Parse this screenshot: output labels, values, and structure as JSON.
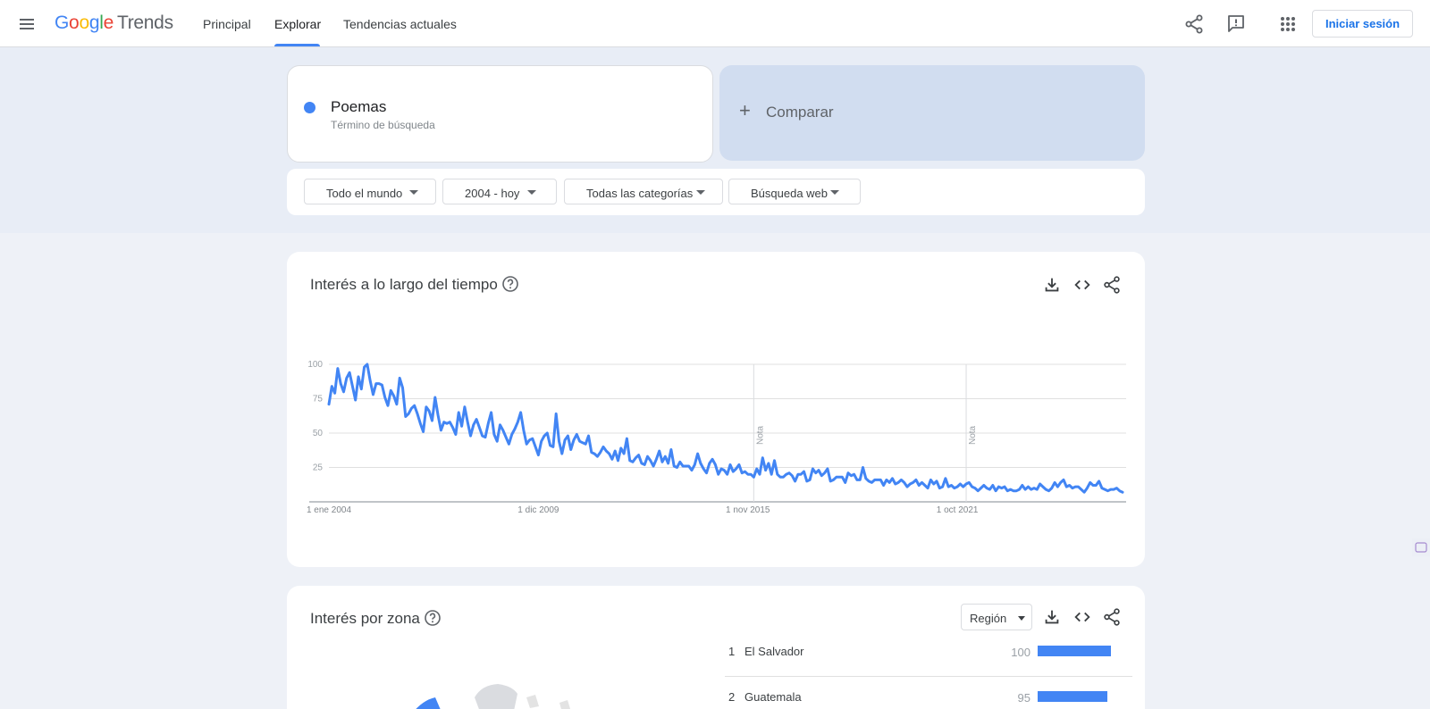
{
  "header": {
    "logo_letters": [
      "G",
      "o",
      "o",
      "g",
      "l",
      "e"
    ],
    "logo_product": "Trends",
    "tabs": [
      {
        "label": "Principal",
        "active": false
      },
      {
        "label": "Explorar",
        "active": true
      },
      {
        "label": "Tendencias actuales",
        "active": false
      }
    ],
    "icons": [
      "menu-icon",
      "share-icon",
      "feedback-icon",
      "apps-icon"
    ],
    "login_label": "Iniciar sesión"
  },
  "search": {
    "term": "Poemas",
    "term_type": "Término de búsqueda",
    "term_color": "#4285f4",
    "compare_label": "Comparar"
  },
  "filters": [
    {
      "label": "Todo el mundo"
    },
    {
      "label": "2004 - hoy"
    },
    {
      "label": "Todas las categorías"
    },
    {
      "label": "Búsqueda web"
    }
  ],
  "interest_over_time": {
    "title": "Interés a lo largo del tiempo",
    "icons": [
      "help-icon",
      "download-icon",
      "embed-icon",
      "share-icon"
    ]
  },
  "chart_data": {
    "type": "line",
    "xlabel": "",
    "ylabel": "",
    "ylim": [
      0,
      100
    ],
    "yticks": [
      25,
      50,
      75,
      100
    ],
    "xtick_labels": [
      "1 ene 2004",
      "1 dic 2009",
      "1 nov 2015",
      "1 oct 2021"
    ],
    "notes": [
      {
        "label": "Nota",
        "date": "2016-01"
      },
      {
        "label": "Nota",
        "date": "2022-01"
      }
    ],
    "grid": true,
    "series": [
      {
        "name": "Poemas",
        "color": "#4285f4",
        "x_start": "2004-01",
        "x_step": "1 month",
        "values": [
          71,
          84,
          79,
          97,
          86,
          80,
          90,
          94,
          84,
          74,
          91,
          82,
          98,
          100,
          88,
          78,
          86,
          86,
          85,
          76,
          70,
          81,
          77,
          71,
          90,
          83,
          62,
          64,
          68,
          70,
          64,
          57,
          51,
          69,
          66,
          59,
          76,
          63,
          52,
          58,
          57,
          58,
          54,
          49,
          65,
          55,
          69,
          58,
          48,
          56,
          60,
          54,
          48,
          47,
          57,
          65,
          49,
          44,
          56,
          52,
          47,
          42,
          49,
          53,
          58,
          65,
          52,
          42,
          45,
          46,
          40,
          34,
          44,
          48,
          50,
          41,
          40,
          64,
          44,
          35,
          45,
          48,
          38,
          45,
          49,
          44,
          43,
          42,
          48,
          36,
          35,
          33,
          36,
          40,
          37,
          35,
          31,
          37,
          30,
          39,
          35,
          46,
          30,
          29,
          32,
          34,
          28,
          27,
          33,
          30,
          26,
          31,
          37,
          29,
          33,
          28,
          38,
          26,
          25,
          29,
          26,
          26,
          26,
          23,
          27,
          35,
          28,
          24,
          21,
          28,
          31,
          27,
          20,
          24,
          23,
          20,
          27,
          22,
          24,
          27,
          21,
          22,
          20,
          20,
          18,
          24,
          20,
          32,
          23,
          28,
          20,
          30,
          20,
          18,
          18,
          20,
          21,
          19,
          15,
          20,
          20,
          22,
          15,
          16,
          24,
          21,
          23,
          19,
          21,
          24,
          15,
          16,
          18,
          18,
          18,
          14,
          21,
          19,
          20,
          16,
          16,
          25,
          17,
          15,
          14,
          16,
          16,
          16,
          12,
          16,
          14,
          17,
          13,
          14,
          16,
          14,
          11,
          13,
          14,
          16,
          12,
          14,
          12,
          10,
          16,
          13,
          15,
          10,
          11,
          17,
          11,
          12,
          10,
          11,
          13,
          11,
          13,
          14,
          11,
          10,
          8,
          10,
          12,
          10,
          9,
          12,
          8,
          11,
          10,
          11,
          8,
          9,
          8,
          8,
          9,
          12,
          9,
          11,
          9,
          10,
          9,
          13,
          11,
          9,
          8,
          10,
          14,
          11,
          14,
          16,
          11,
          12,
          10,
          11,
          11,
          9,
          7,
          10,
          14,
          12,
          12,
          15,
          10,
          9,
          8,
          9,
          9,
          10,
          8,
          7
        ]
      }
    ]
  },
  "interest_by_region": {
    "title": "Interés por zona",
    "dropdown_label": "Región",
    "icons": [
      "help-icon",
      "download-icon",
      "embed-icon",
      "share-icon"
    ],
    "rows": [
      {
        "rank": "1",
        "name": "El Salvador",
        "value": "100",
        "fraction": 1.0
      },
      {
        "rank": "2",
        "name": "Guatemala",
        "value": "95",
        "fraction": 0.95
      }
    ]
  }
}
